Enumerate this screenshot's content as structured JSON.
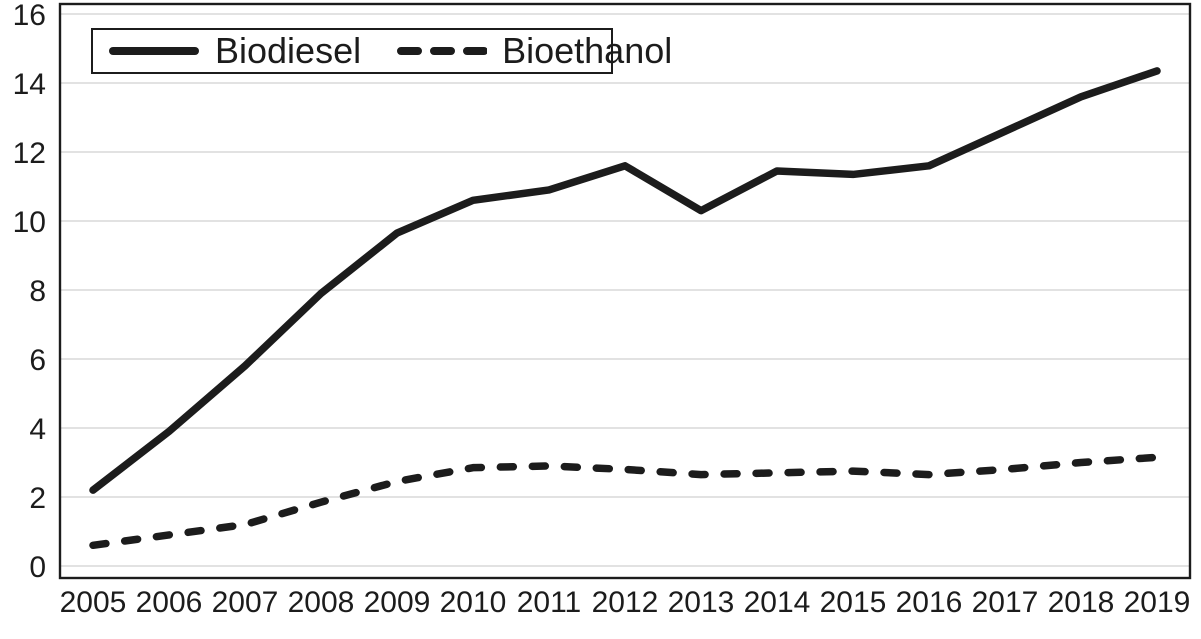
{
  "chart_data": {
    "type": "line",
    "title": "",
    "xlabel": "",
    "ylabel": "",
    "x": [
      2005,
      2006,
      2007,
      2008,
      2009,
      2010,
      2011,
      2012,
      2013,
      2014,
      2015,
      2016,
      2017,
      2018,
      2019
    ],
    "series": [
      {
        "name": "Biodiesel",
        "style": "solid",
        "values": [
          2.2,
          3.9,
          5.8,
          7.9,
          9.65,
          10.6,
          10.9,
          11.6,
          10.3,
          11.45,
          11.35,
          11.6,
          12.6,
          13.6,
          14.35
        ]
      },
      {
        "name": "Bioethanol",
        "style": "dashed",
        "values": [
          0.6,
          0.9,
          1.2,
          1.85,
          2.45,
          2.85,
          2.9,
          2.8,
          2.65,
          2.7,
          2.75,
          2.65,
          2.8,
          3.0,
          3.15
        ]
      }
    ],
    "ylim": [
      0,
      16
    ],
    "yticks": [
      0,
      2,
      4,
      6,
      8,
      10,
      12,
      14,
      16
    ],
    "grid": "horizontal",
    "legend_position": "top-left",
    "colors": {
      "line": "#1c1c1c",
      "grid": "#d8d8d8",
      "text": "#1c1c1c",
      "background": "#ffffff"
    }
  }
}
